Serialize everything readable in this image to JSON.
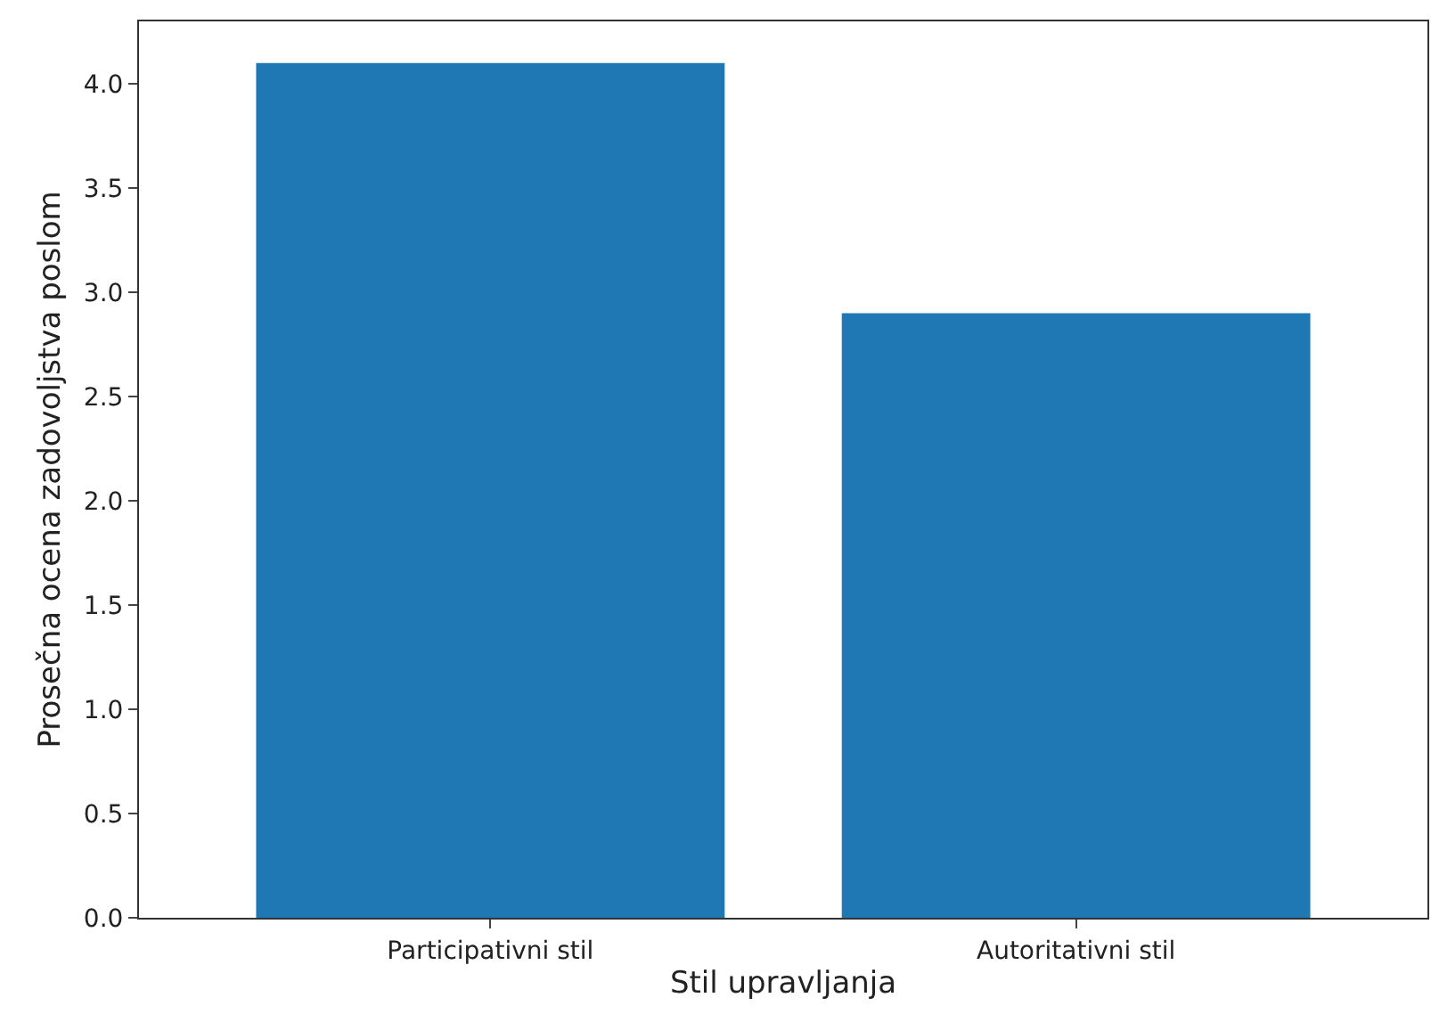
{
  "chart_data": {
    "type": "bar",
    "xlabel": "Stil upravljanja",
    "ylabel": "Prosečna ocena zadovoljstva poslom",
    "categories": [
      "Participativni stil",
      "Autoritativni stil"
    ],
    "values": [
      4.1,
      2.9
    ],
    "color": "#1f77b4",
    "ylim": [
      0,
      4.3
    ],
    "yticks": [
      {
        "value": 0,
        "label": "0.0"
      },
      {
        "value": 0.5,
        "label": "0.5"
      },
      {
        "value": 1,
        "label": "1.0"
      },
      {
        "value": 1.5,
        "label": "1.5"
      },
      {
        "value": 2,
        "label": "2.0"
      },
      {
        "value": 2.5,
        "label": "2.5"
      },
      {
        "value": 3,
        "label": "3.0"
      },
      {
        "value": 3.5,
        "label": "3.5"
      },
      {
        "value": 4,
        "label": "4.0"
      }
    ]
  }
}
